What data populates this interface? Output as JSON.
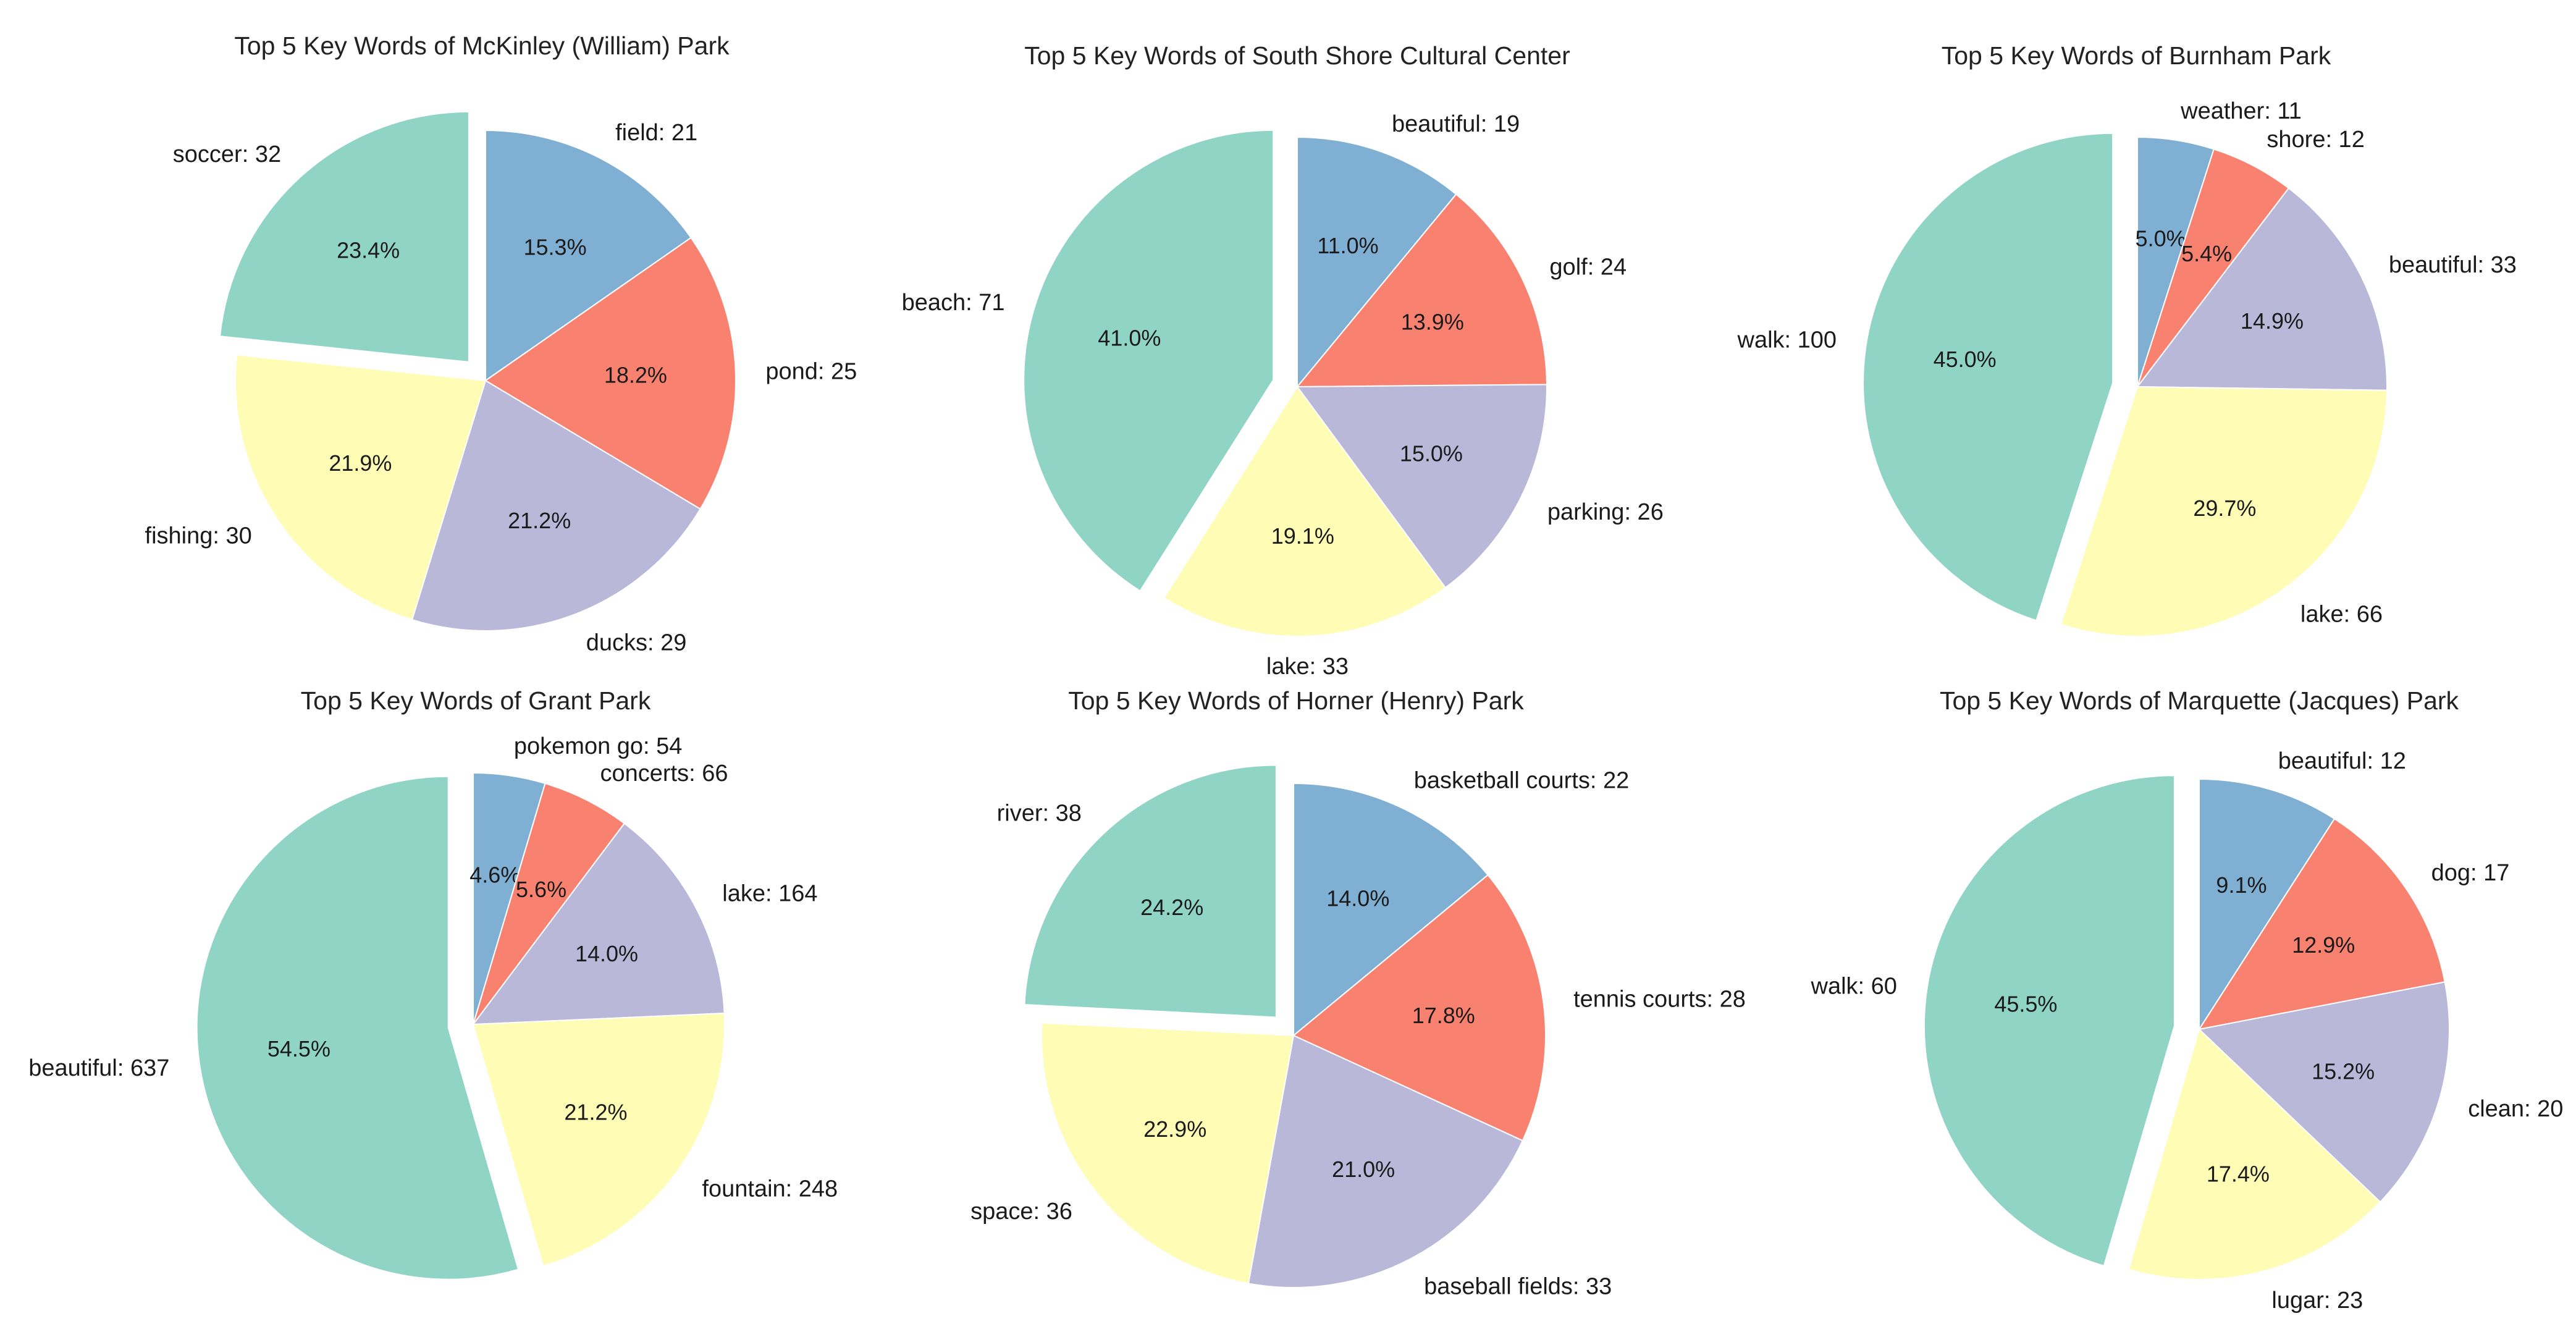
{
  "colors": [
    "#7fafd3",
    "#f8826f",
    "#bab8d8",
    "#fefcb5",
    "#8fd4c5"
  ],
  "chart_data": [
    {
      "type": "pie",
      "title": "Top 5 Key Words of McKinley (William) Park",
      "slices": [
        {
          "name": "field",
          "value": 21,
          "label": "field: 21",
          "pct": "15.3%",
          "explode": false
        },
        {
          "name": "pond",
          "value": 25,
          "label": "pond: 25",
          "pct": "18.2%",
          "explode": false
        },
        {
          "name": "ducks",
          "value": 29,
          "label": "ducks: 29",
          "pct": "21.2%",
          "explode": false
        },
        {
          "name": "fishing",
          "value": 30,
          "label": "fishing: 30",
          "pct": "21.9%",
          "explode": false
        },
        {
          "name": "soccer",
          "value": 32,
          "label": "soccer: 32",
          "pct": "23.4%",
          "explode": true
        }
      ]
    },
    {
      "type": "pie",
      "title": "Top 5 Key Words of South Shore Cultural Center",
      "slices": [
        {
          "name": "beautiful",
          "value": 19,
          "label": "beautiful: 19",
          "pct": "11.0%",
          "explode": false
        },
        {
          "name": "golf",
          "value": 24,
          "label": "golf: 24",
          "pct": "13.9%",
          "explode": false
        },
        {
          "name": "parking",
          "value": 26,
          "label": "parking: 26",
          "pct": "15.0%",
          "explode": false
        },
        {
          "name": "lake",
          "value": 33,
          "label": "lake: 33",
          "pct": "19.1%",
          "explode": false
        },
        {
          "name": "beach",
          "value": 71,
          "label": "beach: 71",
          "pct": "41.0%",
          "explode": true
        }
      ]
    },
    {
      "type": "pie",
      "title": "Top 5 Key Words of Burnham Park",
      "slices": [
        {
          "name": "weather",
          "value": 11,
          "label": "weather: 11",
          "pct": "5.0%",
          "explode": false
        },
        {
          "name": "shore",
          "value": 12,
          "label": "shore: 12",
          "pct": "5.4%",
          "explode": false
        },
        {
          "name": "beautiful",
          "value": 33,
          "label": "beautiful: 33",
          "pct": "14.9%",
          "explode": false
        },
        {
          "name": "lake",
          "value": 66,
          "label": "lake: 66",
          "pct": "29.7%",
          "explode": false
        },
        {
          "name": "walk",
          "value": 100,
          "label": "walk: 100",
          "pct": "45.0%",
          "explode": true
        }
      ]
    },
    {
      "type": "pie",
      "title": "Top 5 Key Words of Grant Park",
      "slices": [
        {
          "name": "pokemon go",
          "value": 54,
          "label": "pokemon go: 54",
          "pct": "4.6%",
          "explode": false
        },
        {
          "name": "concerts",
          "value": 66,
          "label": "concerts: 66",
          "pct": "5.6%",
          "explode": false
        },
        {
          "name": "lake",
          "value": 164,
          "label": "lake: 164",
          "pct": "14.0%",
          "explode": false
        },
        {
          "name": "fountain",
          "value": 248,
          "label": "fountain: 248",
          "pct": "21.2%",
          "explode": false
        },
        {
          "name": "beautiful",
          "value": 637,
          "label": "beautiful: 637",
          "pct": "54.5%",
          "explode": true
        }
      ]
    },
    {
      "type": "pie",
      "title": "Top 5 Key Words of Horner (Henry) Park",
      "slices": [
        {
          "name": "basketball courts",
          "value": 22,
          "label": "basketball courts: 22",
          "pct": "14.0%",
          "explode": false
        },
        {
          "name": "tennis courts",
          "value": 28,
          "label": "tennis courts: 28",
          "pct": "17.8%",
          "explode": false
        },
        {
          "name": "baseball fields",
          "value": 33,
          "label": "baseball fields: 33",
          "pct": "21.0%",
          "explode": false
        },
        {
          "name": "space",
          "value": 36,
          "label": "space: 36",
          "pct": "22.9%",
          "explode": false
        },
        {
          "name": "river",
          "value": 38,
          "label": "river: 38",
          "pct": "24.2%",
          "explode": true
        }
      ]
    },
    {
      "type": "pie",
      "title": "Top 5 Key Words of Marquette (Jacques) Park",
      "slices": [
        {
          "name": "beautiful",
          "value": 12,
          "label": "beautiful: 12",
          "pct": "9.1%",
          "explode": false
        },
        {
          "name": "dog",
          "value": 17,
          "label": "dog: 17",
          "pct": "12.9%",
          "explode": false
        },
        {
          "name": "clean",
          "value": 20,
          "label": "clean: 20",
          "pct": "15.2%",
          "explode": false
        },
        {
          "name": "lugar",
          "value": 23,
          "label": "lugar: 23",
          "pct": "17.4%",
          "explode": false
        },
        {
          "name": "walk",
          "value": 60,
          "label": "walk: 60",
          "pct": "45.5%",
          "explode": true
        }
      ]
    }
  ]
}
